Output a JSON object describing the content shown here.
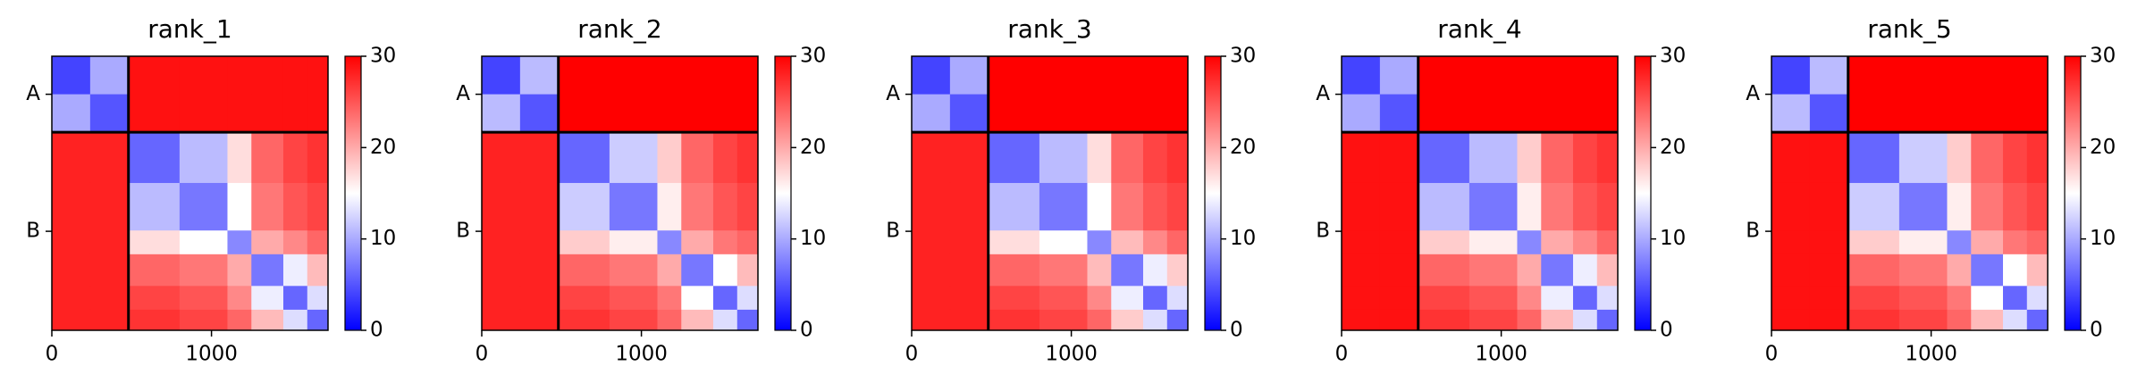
{
  "chart_data": [
    {
      "type": "heatmap",
      "title": "rank_1",
      "xlim": [
        0,
        1730
      ],
      "ylim": [
        1730,
        0
      ],
      "xticks": [
        0,
        1000
      ],
      "yticks": [
        {
          "value": 240,
          "label": "A"
        },
        {
          "value": 1105,
          "label": "B"
        }
      ],
      "boundaries": [
        480
      ],
      "bins": [
        0,
        240,
        480,
        800,
        1100,
        1250,
        1450,
        1600,
        1730
      ],
      "colormap": "bwr",
      "clim": [
        0,
        30
      ],
      "cticks": [
        0,
        10,
        20,
        30
      ],
      "matrix": [
        [
          4,
          10,
          29,
          29,
          29,
          29,
          29,
          29
        ],
        [
          10,
          5,
          29,
          29,
          29,
          29,
          29,
          29
        ],
        [
          28,
          28,
          6,
          11,
          17,
          24,
          26,
          27
        ],
        [
          28,
          28,
          11,
          7,
          15,
          23,
          25,
          26
        ],
        [
          28,
          28,
          17,
          15,
          8,
          20,
          22,
          24
        ],
        [
          28,
          28,
          24,
          23,
          20,
          7,
          14,
          19
        ],
        [
          28,
          28,
          26,
          25,
          22,
          14,
          6,
          13
        ],
        [
          28,
          28,
          27,
          26,
          24,
          19,
          13,
          6
        ]
      ]
    },
    {
      "type": "heatmap",
      "title": "rank_2",
      "xlim": [
        0,
        1730
      ],
      "ylim": [
        1730,
        0
      ],
      "xticks": [
        0,
        1000
      ],
      "yticks": [
        {
          "value": 240,
          "label": "A"
        },
        {
          "value": 1105,
          "label": "B"
        }
      ],
      "boundaries": [
        480
      ],
      "bins": [
        0,
        240,
        480,
        800,
        1100,
        1250,
        1450,
        1600,
        1730
      ],
      "colormap": "bwr",
      "clim": [
        0,
        30
      ],
      "cticks": [
        0,
        10,
        20,
        30
      ],
      "matrix": [
        [
          4,
          11,
          30,
          30,
          30,
          30,
          30,
          30
        ],
        [
          11,
          5,
          30,
          30,
          30,
          30,
          30,
          30
        ],
        [
          28,
          28,
          6,
          12,
          18,
          24,
          26,
          27
        ],
        [
          28,
          28,
          12,
          7,
          16,
          23,
          25,
          26
        ],
        [
          28,
          28,
          18,
          16,
          8,
          20,
          23,
          24
        ],
        [
          28,
          28,
          24,
          23,
          20,
          7,
          15,
          19
        ],
        [
          28,
          28,
          26,
          25,
          23,
          15,
          6,
          13
        ],
        [
          28,
          28,
          27,
          26,
          24,
          19,
          13,
          6
        ]
      ]
    },
    {
      "type": "heatmap",
      "title": "rank_3",
      "xlim": [
        0,
        1730
      ],
      "ylim": [
        1730,
        0
      ],
      "xticks": [
        0,
        1000
      ],
      "yticks": [
        {
          "value": 240,
          "label": "A"
        },
        {
          "value": 1105,
          "label": "B"
        }
      ],
      "boundaries": [
        480
      ],
      "bins": [
        0,
        240,
        480,
        800,
        1100,
        1250,
        1450,
        1600,
        1730
      ],
      "colormap": "bwr",
      "clim": [
        0,
        30
      ],
      "cticks": [
        0,
        10,
        20,
        30
      ],
      "matrix": [
        [
          4,
          10,
          30,
          30,
          30,
          30,
          30,
          30
        ],
        [
          10,
          5,
          30,
          30,
          30,
          30,
          30,
          30
        ],
        [
          28,
          28,
          6,
          11,
          17,
          24,
          26,
          27
        ],
        [
          28,
          28,
          11,
          7,
          15,
          23,
          25,
          26
        ],
        [
          28,
          28,
          17,
          15,
          8,
          19,
          22,
          24
        ],
        [
          28,
          28,
          24,
          23,
          19,
          7,
          14,
          18
        ],
        [
          28,
          28,
          26,
          25,
          22,
          14,
          6,
          13
        ],
        [
          28,
          28,
          27,
          26,
          24,
          18,
          13,
          6
        ]
      ]
    },
    {
      "type": "heatmap",
      "title": "rank_4",
      "xlim": [
        0,
        1730
      ],
      "ylim": [
        1730,
        0
      ],
      "xticks": [
        0,
        1000
      ],
      "yticks": [
        {
          "value": 240,
          "label": "A"
        },
        {
          "value": 1105,
          "label": "B"
        }
      ],
      "boundaries": [
        480
      ],
      "bins": [
        0,
        240,
        480,
        800,
        1100,
        1250,
        1450,
        1600,
        1730
      ],
      "colormap": "bwr",
      "clim": [
        0,
        30
      ],
      "cticks": [
        0,
        10,
        20,
        30
      ],
      "matrix": [
        [
          4,
          10,
          30,
          30,
          30,
          30,
          30,
          30
        ],
        [
          10,
          5,
          30,
          30,
          30,
          30,
          30,
          30
        ],
        [
          29,
          29,
          6,
          11,
          18,
          24,
          26,
          27
        ],
        [
          29,
          29,
          11,
          7,
          16,
          23,
          25,
          26
        ],
        [
          29,
          29,
          18,
          16,
          8,
          20,
          22,
          24
        ],
        [
          29,
          29,
          24,
          23,
          20,
          7,
          14,
          19
        ],
        [
          29,
          29,
          26,
          25,
          22,
          14,
          6,
          13
        ],
        [
          29,
          29,
          27,
          26,
          24,
          19,
          13,
          6
        ]
      ]
    },
    {
      "type": "heatmap",
      "title": "rank_5",
      "xlim": [
        0,
        1730
      ],
      "ylim": [
        1730,
        0
      ],
      "xticks": [
        0,
        1000
      ],
      "yticks": [
        {
          "value": 240,
          "label": "A"
        },
        {
          "value": 1105,
          "label": "B"
        }
      ],
      "boundaries": [
        480
      ],
      "bins": [
        0,
        240,
        480,
        800,
        1100,
        1250,
        1450,
        1600,
        1730
      ],
      "colormap": "bwr",
      "clim": [
        0,
        30
      ],
      "cticks": [
        0,
        10,
        20,
        30
      ],
      "matrix": [
        [
          4,
          11,
          30,
          30,
          30,
          30,
          30,
          30
        ],
        [
          11,
          5,
          30,
          30,
          30,
          30,
          30,
          30
        ],
        [
          29,
          29,
          6,
          12,
          18,
          24,
          26,
          27
        ],
        [
          29,
          29,
          12,
          7,
          16,
          23,
          25,
          26
        ],
        [
          29,
          29,
          18,
          16,
          8,
          20,
          23,
          24
        ],
        [
          29,
          29,
          24,
          23,
          20,
          7,
          15,
          19
        ],
        [
          29,
          29,
          26,
          25,
          23,
          15,
          6,
          13
        ],
        [
          29,
          29,
          27,
          26,
          24,
          19,
          13,
          6
        ]
      ]
    }
  ]
}
